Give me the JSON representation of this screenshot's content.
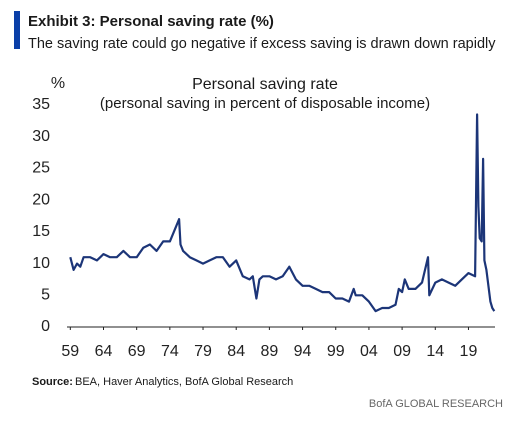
{
  "chart_data": {
    "type": "line",
    "title": "Exhibit 3: Personal saving rate (%)",
    "subtitle": "The saving rate could go negative if excess saving is drawn down rapidly",
    "y_label": "%",
    "chart_title": "Personal saving rate",
    "chart_subtitle": "(personal saving in percent of disposable income)",
    "source_label": "Source:",
    "source": "BEA, Haver Analytics, BofA Global Research",
    "footer": "BofA GLOBAL RESEARCH",
    "x": [
      1959,
      1959.5,
      1960,
      1960.5,
      1961,
      1962,
      1963,
      1964,
      1965,
      1966,
      1967,
      1968,
      1969,
      1970,
      1971,
      1972,
      1973,
      1974,
      1975.4,
      1975.6,
      1976,
      1977,
      1978,
      1979,
      1980,
      1981,
      1982,
      1983,
      1984,
      1985,
      1986,
      1986.5,
      1987.05,
      1987.5,
      1988,
      1989,
      1990,
      1991,
      1992,
      1993,
      1994,
      1995,
      1996,
      1997,
      1998,
      1999,
      2000,
      2001,
      2001.7,
      2002,
      2003,
      2004,
      2005,
      2006,
      2007,
      2008,
      2008.5,
      2009,
      2009.4,
      2010,
      2011,
      2012,
      2012.9,
      2013.1,
      2014,
      2015,
      2016,
      2017,
      2018,
      2019,
      2020,
      2020.3,
      2020.5,
      2020.7,
      2021,
      2021.2,
      2021.4,
      2021.7,
      2022,
      2022.3,
      2022.6,
      2022.9
    ],
    "series": [
      {
        "name": "Personal saving rate",
        "color": "#1c3578",
        "values": [
          11,
          9,
          10,
          9.5,
          11,
          11,
          10.5,
          11.5,
          11,
          11,
          12,
          11,
          11,
          12.5,
          13,
          12,
          13.5,
          13.5,
          17,
          13,
          12,
          11,
          10.5,
          10,
          10.5,
          11,
          11,
          9.5,
          10.5,
          8,
          7.5,
          8,
          4.5,
          7.5,
          8,
          8,
          7.5,
          8,
          9.5,
          7.5,
          6.5,
          6.5,
          6,
          5.5,
          5.5,
          4.5,
          4.5,
          4,
          6,
          5,
          5,
          4,
          2.5,
          3,
          3,
          3.5,
          6,
          5.5,
          7.5,
          6,
          6,
          7,
          11,
          5,
          7,
          7.5,
          7,
          6.5,
          7.5,
          8.5,
          8,
          33.5,
          19,
          14,
          13.5,
          26.5,
          10.5,
          9,
          6.5,
          4,
          3,
          2.5
        ]
      }
    ],
    "xlim": [
      1958.5,
      2023
    ],
    "xticks": [
      {
        "value": 1959,
        "label": "59"
      },
      {
        "value": 1964,
        "label": "64"
      },
      {
        "value": 1969,
        "label": "69"
      },
      {
        "value": 1974,
        "label": "74"
      },
      {
        "value": 1979,
        "label": "79"
      },
      {
        "value": 1984,
        "label": "84"
      },
      {
        "value": 1989,
        "label": "89"
      },
      {
        "value": 1994,
        "label": "94"
      },
      {
        "value": 1999,
        "label": "99"
      },
      {
        "value": 2004,
        "label": "04"
      },
      {
        "value": 2009,
        "label": "09"
      },
      {
        "value": 2014,
        "label": "14"
      },
      {
        "value": 2019,
        "label": "19"
      }
    ],
    "ylim": [
      0,
      35
    ],
    "yticks": [
      0,
      5,
      10,
      15,
      20,
      25,
      30,
      35
    ],
    "grid": false
  }
}
